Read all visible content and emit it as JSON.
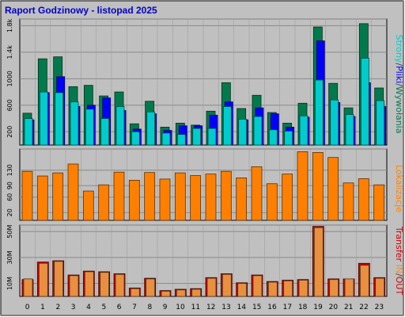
{
  "title": "Raport Godzinowy -  listopad 2025",
  "colors": {
    "page_bg": "#c0c0c0",
    "plot_bg": "#c0c0c0",
    "strony": "#00cccc",
    "pliki": "#0000ff",
    "wywolania": "#007a4d",
    "lokalizacje": "#ff8000",
    "transfer_in": "#e89040",
    "transfer_out": "#cc0000"
  },
  "hours": [
    "0",
    "1",
    "2",
    "3",
    "4",
    "5",
    "6",
    "7",
    "8",
    "9",
    "10",
    "11",
    "12",
    "13",
    "14",
    "15",
    "16",
    "17",
    "18",
    "19",
    "20",
    "21",
    "22",
    "23"
  ],
  "side_labels": {
    "top": [
      {
        "key": "strony",
        "text": "Strony"
      },
      {
        "key": "sep",
        "text": "/"
      },
      {
        "key": "pliki",
        "text": "Pliki"
      },
      {
        "key": "sep",
        "text": "/"
      },
      {
        "key": "wywolania",
        "text": "Wywołania"
      }
    ],
    "middle": "Lokalizacje",
    "bottom": [
      {
        "key": "transfer_out",
        "text": "Transfer"
      },
      {
        "key": "sep",
        "text": " "
      },
      {
        "key": "transfer_in",
        "text": "IN"
      },
      {
        "key": "sep",
        "text": "/"
      },
      {
        "key": "transfer_out",
        "text": "OUT"
      }
    ]
  },
  "chart_data": [
    {
      "type": "bar",
      "panel": "top",
      "categories": [
        "0",
        "1",
        "2",
        "3",
        "4",
        "5",
        "6",
        "7",
        "8",
        "9",
        "10",
        "11",
        "12",
        "13",
        "14",
        "15",
        "16",
        "17",
        "18",
        "19",
        "20",
        "21",
        "22",
        "23"
      ],
      "yticks": [
        "200",
        "600",
        "1000",
        "1.4k",
        "1.8k"
      ],
      "ytick_values": [
        200,
        600,
        1000,
        1400,
        1800
      ],
      "ylim": [
        0,
        1900
      ],
      "series": [
        {
          "name": "Wywołania",
          "key": "wywolania",
          "values": [
            480,
            1300,
            1330,
            880,
            900,
            740,
            800,
            320,
            660,
            270,
            330,
            300,
            510,
            940,
            550,
            750,
            490,
            330,
            630,
            1780,
            930,
            560,
            1830,
            860
          ]
        },
        {
          "name": "Pliki",
          "key": "pliki",
          "values": [
            380,
            790,
            1030,
            580,
            600,
            710,
            520,
            240,
            470,
            220,
            290,
            290,
            450,
            650,
            380,
            560,
            470,
            270,
            420,
            1570,
            640,
            430,
            940,
            580
          ]
        },
        {
          "name": "Strony",
          "key": "strony",
          "values": [
            400,
            800,
            790,
            650,
            540,
            400,
            580,
            200,
            500,
            180,
            160,
            250,
            250,
            580,
            390,
            430,
            230,
            210,
            440,
            980,
            680,
            460,
            1310,
            670
          ]
        }
      ]
    },
    {
      "type": "bar",
      "panel": "middle",
      "categories": [
        "0",
        "1",
        "2",
        "3",
        "4",
        "5",
        "6",
        "7",
        "8",
        "9",
        "10",
        "11",
        "12",
        "13",
        "14",
        "15",
        "16",
        "17",
        "18",
        "19",
        "20",
        "21",
        "22",
        "23"
      ],
      "yticks": [
        "20",
        "60",
        "90",
        "130"
      ],
      "ytick_values": [
        20,
        60,
        90,
        130
      ],
      "ylim": [
        0,
        185
      ],
      "series": [
        {
          "name": "Lokalizacje",
          "key": "lokalizacje",
          "values": [
            127,
            115,
            123,
            146,
            76,
            92,
            125,
            104,
            124,
            107,
            123,
            116,
            120,
            127,
            110,
            139,
            95,
            120,
            178,
            176,
            163,
            97,
            108,
            92
          ]
        }
      ]
    },
    {
      "type": "bar",
      "panel": "bottom",
      "categories": [
        "0",
        "1",
        "2",
        "3",
        "4",
        "5",
        "6",
        "7",
        "8",
        "9",
        "10",
        "11",
        "12",
        "13",
        "14",
        "15",
        "16",
        "17",
        "18",
        "19",
        "20",
        "21",
        "22",
        "23"
      ],
      "yticks": [
        "10M",
        "30M",
        "50M"
      ],
      "ytick_values": [
        10,
        30,
        50
      ],
      "ylim": [
        0,
        55
      ],
      "unit": "MB",
      "series": [
        {
          "name": "IN",
          "key": "transfer_in",
          "values": [
            13.5,
            25.5,
            27.0,
            16.0,
            19.0,
            18.5,
            17.0,
            6.0,
            13.5,
            4.0,
            5.0,
            5.5,
            14.0,
            17.0,
            10.0,
            16.0,
            11.0,
            12.0,
            12.5,
            53.0,
            13.0,
            13.5,
            24.0,
            14.0
          ]
        },
        {
          "name": "OUT",
          "key": "transfer_out",
          "values": [
            13.0,
            26.5,
            27.5,
            16.5,
            19.5,
            19.0,
            17.5,
            6.5,
            14.0,
            4.5,
            5.5,
            6.0,
            14.5,
            17.5,
            10.5,
            16.5,
            11.5,
            12.5,
            13.0,
            54.0,
            13.5,
            13.5,
            25.5,
            14.5
          ]
        }
      ]
    }
  ]
}
